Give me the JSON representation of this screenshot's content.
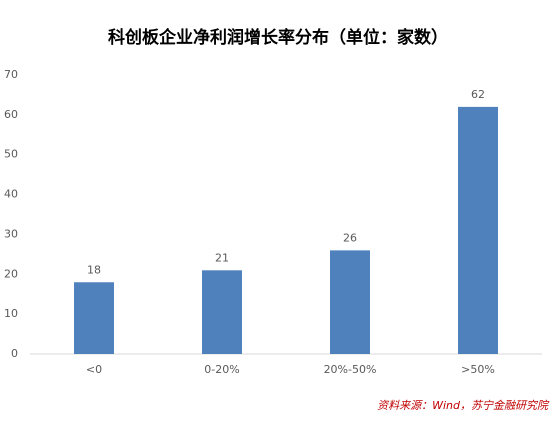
{
  "chart_data": {
    "type": "bar",
    "title": "科创板企业净利润增长率分布（单位：家数）",
    "categories": [
      "<0",
      "0-20%",
      "20%-50%",
      ">50%"
    ],
    "values": [
      18,
      21,
      26,
      62
    ],
    "color": "#4f81bd",
    "ylim": [
      0,
      70
    ],
    "yticks": [
      0,
      10,
      20,
      30,
      40,
      50,
      60,
      70
    ],
    "grid": false,
    "source": "资料来源：Wind，苏宁金融研究院"
  }
}
